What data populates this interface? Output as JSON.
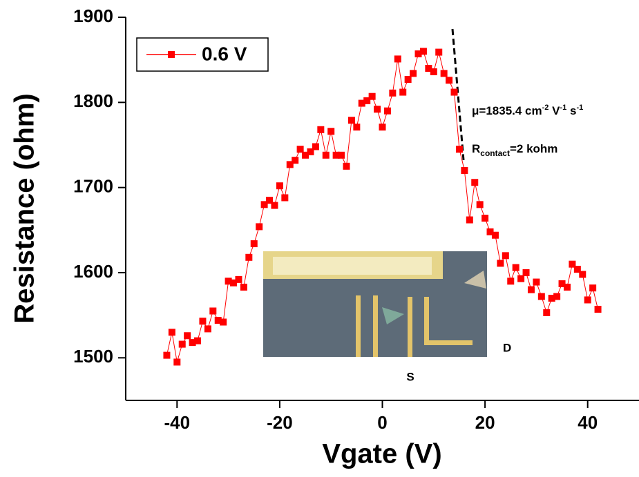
{
  "chart_data": {
    "type": "line",
    "x_label": "Vgate (V)",
    "y_label": "Resistance (ohm)",
    "xlim": [
      -50,
      50
    ],
    "ylim": [
      1450,
      1900
    ],
    "xticks": [
      -40,
      -20,
      0,
      20,
      40
    ],
    "yticks": [
      1500,
      1600,
      1700,
      1800,
      1900
    ],
    "x": [
      -42,
      -41,
      -40,
      -39,
      -38,
      -37,
      -36,
      -35,
      -34,
      -33,
      -32,
      -31,
      -30,
      -29,
      -28,
      -27,
      -26,
      -25,
      -24,
      -23,
      -22,
      -21,
      -20,
      -19,
      -18,
      -17,
      -16,
      -15,
      -14,
      -13,
      -12,
      -11,
      -10,
      -9,
      -8,
      -7,
      -6,
      -5,
      -4,
      -3,
      -2,
      -1,
      0,
      1,
      2,
      3,
      4,
      5,
      6,
      7,
      8,
      9,
      10,
      11,
      12,
      13,
      14,
      15,
      16,
      17,
      18,
      19,
      20,
      21,
      22,
      23,
      24,
      25,
      26,
      27,
      28,
      29,
      30,
      31,
      32,
      33,
      34,
      35,
      36,
      37,
      38,
      39,
      40,
      41,
      42
    ],
    "series": [
      {
        "name": "0.6 V",
        "color": "#ff0000",
        "values": [
          1503,
          1530,
          1495,
          1516,
          1526,
          1518,
          1520,
          1543,
          1534,
          1555,
          1544,
          1542,
          1590,
          1588,
          1592,
          1583,
          1618,
          1634,
          1654,
          1680,
          1685,
          1679,
          1702,
          1688,
          1727,
          1732,
          1745,
          1738,
          1742,
          1748,
          1768,
          1738,
          1766,
          1738,
          1738,
          1725,
          1779,
          1771,
          1799,
          1802,
          1807,
          1792,
          1771,
          1790,
          1811,
          1851,
          1812,
          1827,
          1834,
          1857,
          1860,
          1840,
          1836,
          1859,
          1834,
          1826,
          1812,
          1745,
          1720,
          1662,
          1706,
          1680,
          1664,
          1648,
          1644,
          1611,
          1620,
          1590,
          1606,
          1593,
          1600,
          1580,
          1589,
          1572,
          1553,
          1570,
          1572,
          1587,
          1583,
          1610,
          1604,
          1598,
          1568,
          1582,
          1557
        ]
      }
    ],
    "legend": "upper left",
    "annotations": {
      "mobility": [
        "μ=1835.4 cm",
        "-2",
        " V",
        "-1",
        " s",
        "-1"
      ],
      "contact": [
        "R",
        "contact",
        "=2 kohm"
      ],
      "inset_labels": [
        "D",
        "S"
      ]
    }
  }
}
